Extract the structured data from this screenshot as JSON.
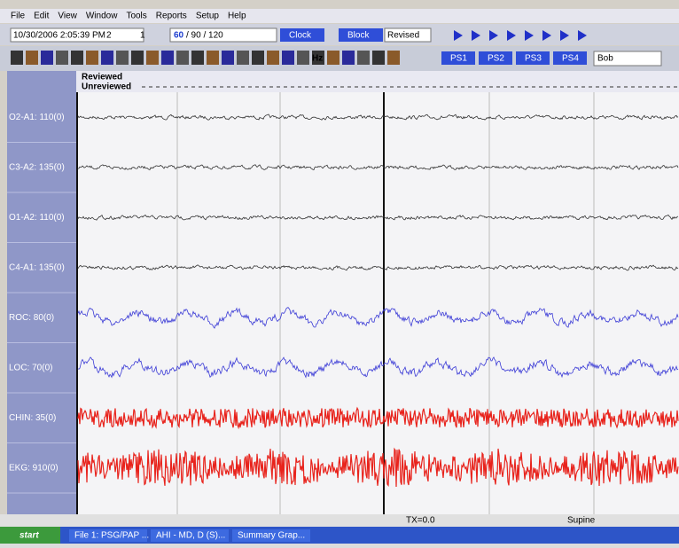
{
  "menu": [
    "File",
    "Edit",
    "View",
    "Window",
    "Tools",
    "Reports",
    "Setup",
    "Help"
  ],
  "toolbar": {
    "datetime": "10/30/2006 2:05:39 PM",
    "field1": "2",
    "field2": "1",
    "epoch_selected": "60",
    "epoch_rest": "/ 90 / 120",
    "clock": "Clock",
    "block": "Block",
    "revised": "Revised",
    "hz": "Hz",
    "presets": [
      "PS1",
      "PS2",
      "PS3",
      "PS4"
    ],
    "user": "Bob"
  },
  "review": {
    "reviewed": "Reviewed",
    "unreviewed": "Unreviewed"
  },
  "channels": [
    {
      "label": "O2-A1: 110(0)",
      "color": "#333333"
    },
    {
      "label": "C3-A2: 135(0)",
      "color": "#333333"
    },
    {
      "label": "O1-A2: 110(0)",
      "color": "#333333"
    },
    {
      "label": "C4-A1: 135(0)",
      "color": "#333333"
    },
    {
      "label": "ROC: 80(0)",
      "color": "#3b3bd6"
    },
    {
      "label": "LOC: 70(0)",
      "color": "#3b3bd6"
    },
    {
      "label": "CHIN: 35(0)",
      "color": "#e8231c"
    },
    {
      "label": "EKG: 910(0)",
      "color": "#e8231c"
    }
  ],
  "status": {
    "tx": "TX=0.0",
    "position": "Supine"
  },
  "taskbar": {
    "start": "start",
    "items": [
      "File 1: PSG/PAP ...",
      "AHI - MD, D (S)...",
      "Summary Grap..."
    ]
  }
}
